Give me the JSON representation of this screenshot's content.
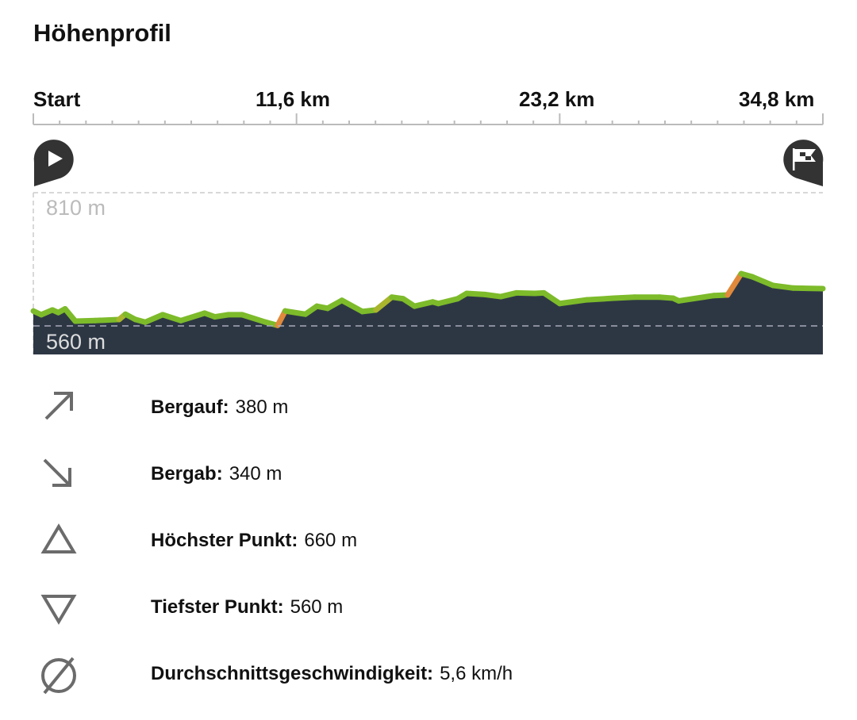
{
  "title": "Höhenprofil",
  "chart_data": {
    "type": "area",
    "xlabel": "",
    "ylabel": "",
    "x_ticks": [
      "Start",
      "11,6 km",
      "23,2 km",
      "34,8 km"
    ],
    "x_tick_values_km": [
      0,
      11.6,
      23.2,
      34.8
    ],
    "xlim": [
      0,
      34.8
    ],
    "y_labels": [
      "810 m",
      "560 m"
    ],
    "y_label_values": [
      810,
      560
    ],
    "grid": "dashed reference lines at 810 m and 560 m",
    "start_marker": "play-icon",
    "end_marker": "checkered-flag-icon",
    "colors": {
      "fill": "#2d3744",
      "line": "#7dbb2a",
      "steep": "#e0893a"
    },
    "series": [
      {
        "x": [
          0,
          0.35,
          0.84,
          1.1,
          1.4,
          1.85,
          2.73,
          3.78,
          4.06,
          4.5,
          4.93,
          5.7,
          6.5,
          7.55,
          8.0,
          8.6,
          9.2,
          10.24,
          10.77,
          11.1,
          11.99,
          12.5,
          12.97,
          13.6,
          14.5,
          15.1,
          15.8,
          16.3,
          16.8,
          17.6,
          17.85,
          18.7,
          19.1,
          19.9,
          20.6,
          21.3,
          22.1,
          22.5,
          23.2,
          24.4,
          25.6,
          26.5,
          27.6,
          28.2,
          28.45,
          30.0,
          30.6,
          31.2,
          31.7,
          32.6,
          33.5,
          34.8
        ],
        "y": [
          588,
          581,
          590,
          585,
          592,
          569,
          570,
          572,
          582,
          572,
          567,
          581,
          570,
          584,
          577,
          581,
          581,
          567,
          561,
          588,
          582,
          597,
          593,
          608,
          587,
          590,
          614,
          611,
          597,
          605,
          602,
          611,
          621,
          619,
          615,
          622,
          621,
          622,
          602,
          609,
          612,
          614,
          614,
          612,
          607,
          617,
          618,
          658,
          652,
          636,
          631,
          630
        ]
      }
    ]
  },
  "stats": [
    {
      "icon": "arrow-up-right-icon",
      "label": "Bergauf:",
      "value": "380 m"
    },
    {
      "icon": "arrow-down-right-icon",
      "label": "Bergab:",
      "value": "340 m"
    },
    {
      "icon": "triangle-up-icon",
      "label": "Höchster Punkt:",
      "value": "660 m"
    },
    {
      "icon": "triangle-down-icon",
      "label": "Tiefster Punkt:",
      "value": "560 m"
    },
    {
      "icon": "average-icon",
      "label": "Durchschnittsgeschwindigkeit:",
      "value": "5,6 km/h"
    }
  ]
}
